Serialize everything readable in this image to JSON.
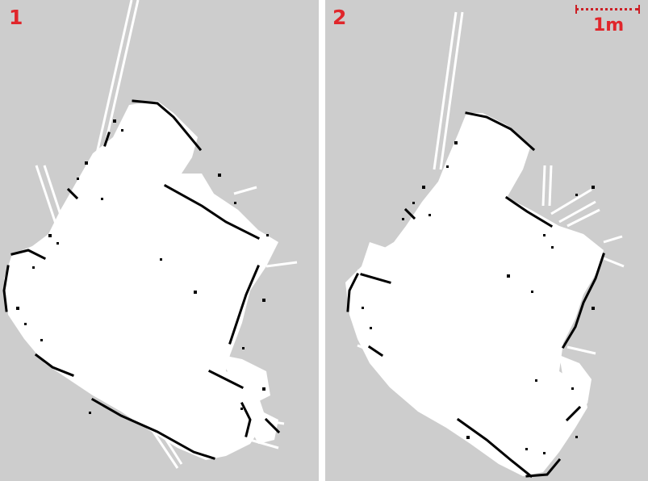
{
  "panels": [
    {
      "label": "1"
    },
    {
      "label": "2"
    }
  ],
  "scale_bar": {
    "label": "1m"
  },
  "colors": {
    "background": "#cdcdcd",
    "free_space": "#ffffff",
    "obstacle": "#000000",
    "annotation": "#e0262b"
  }
}
